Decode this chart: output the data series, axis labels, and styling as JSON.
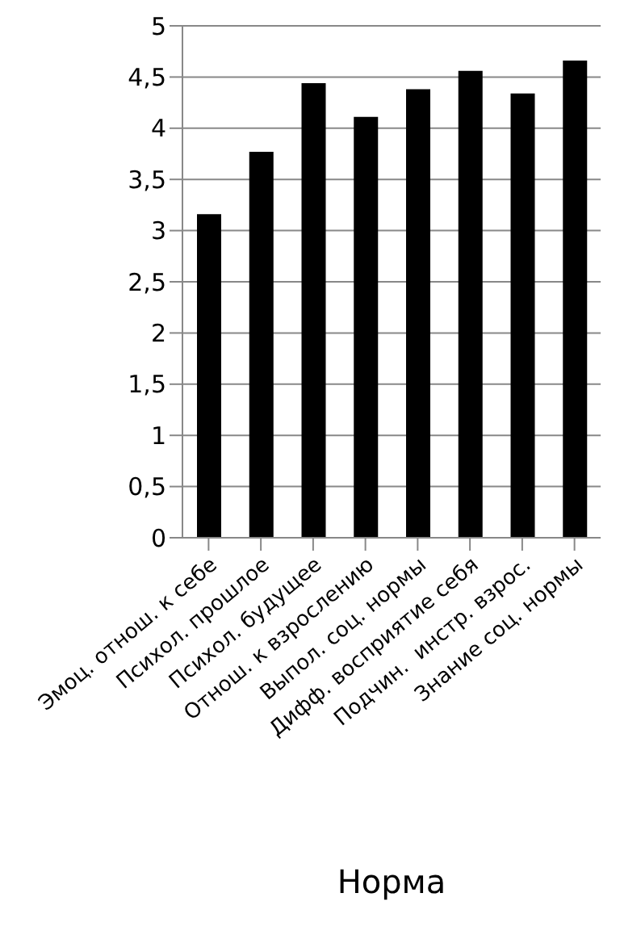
{
  "chart_data": {
    "type": "bar",
    "xlabel": "Норма",
    "categories": [
      "Эмоц. отнош. к себе",
      "Психол. прошлое",
      "Психол. будущее",
      "Отнош. к взрослению",
      "Выпол. соц. нормы",
      "Дифф. восприятие себя",
      "Подчин.  инстр. взрос.",
      "Знание соц. нормы"
    ],
    "values": [
      3.16,
      3.77,
      4.44,
      4.11,
      4.38,
      4.56,
      4.34,
      4.66
    ],
    "color": "#000000",
    "ylim": [
      0,
      5
    ],
    "yticks": [
      0,
      {
        "value": 0.5,
        "label": "0,5"
      },
      1,
      {
        "value": 1.5,
        "label": "1,5"
      },
      2,
      {
        "value": 2.5,
        "label": "2,5"
      },
      3,
      {
        "value": 3.5,
        "label": "3,5"
      },
      4,
      {
        "value": 4.5,
        "label": "4,5"
      },
      5
    ],
    "grid": "y",
    "legend": false
  }
}
